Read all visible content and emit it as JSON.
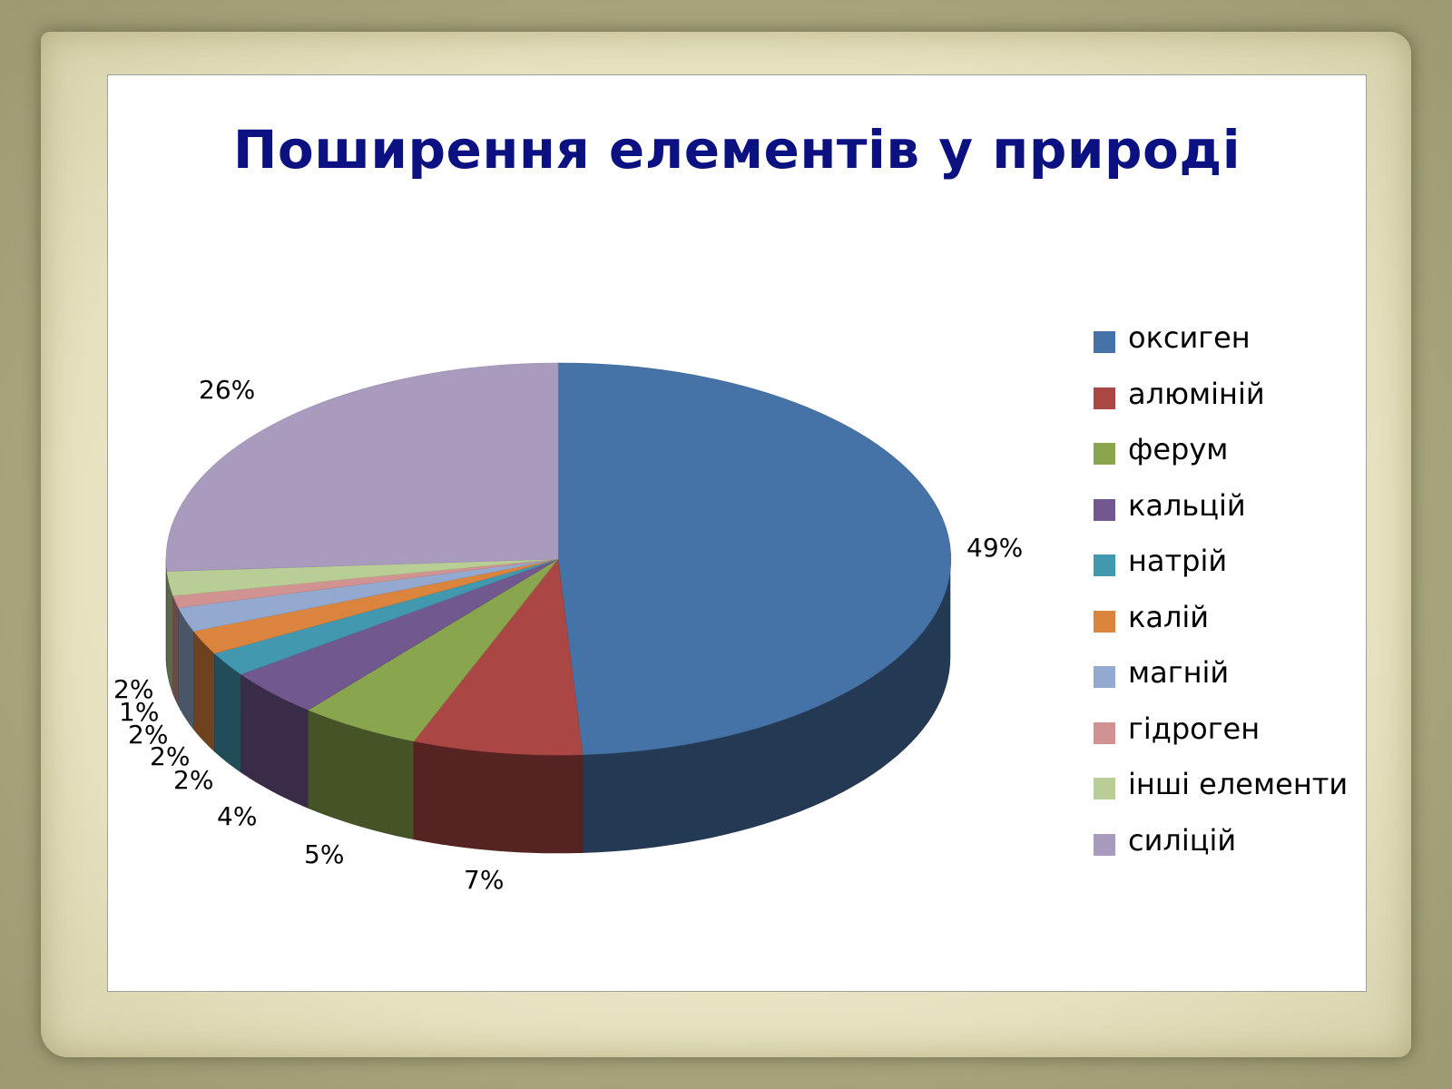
{
  "chart_data": {
    "type": "pie",
    "style": "3d",
    "title": "Поширення елементів у природі",
    "legend_position": "right",
    "series": [
      {
        "name": "оксиген",
        "value": 49,
        "label": "49%",
        "color": "#4572a7"
      },
      {
        "name": "алюміній",
        "value": 7,
        "label": "7%",
        "color": "#aa4643"
      },
      {
        "name": "ферум",
        "value": 5,
        "label": "5%",
        "color": "#89a54e"
      },
      {
        "name": "кальцій",
        "value": 4,
        "label": "4%",
        "color": "#71588f"
      },
      {
        "name": "натрій",
        "value": 2,
        "label": "2%",
        "color": "#4198af"
      },
      {
        "name": "калій",
        "value": 2,
        "label": "2%",
        "color": "#db843d"
      },
      {
        "name": "магній",
        "value": 2,
        "label": "2%",
        "color": "#93a9cf"
      },
      {
        "name": "гідроген",
        "value": 1,
        "label": "1%",
        "color": "#d19392"
      },
      {
        "name": "інші елементи",
        "value": 2,
        "label": "2%",
        "color": "#b9cd96"
      },
      {
        "name": "силіцій",
        "value": 26,
        "label": "26%",
        "color": "#a99bbd"
      }
    ]
  }
}
